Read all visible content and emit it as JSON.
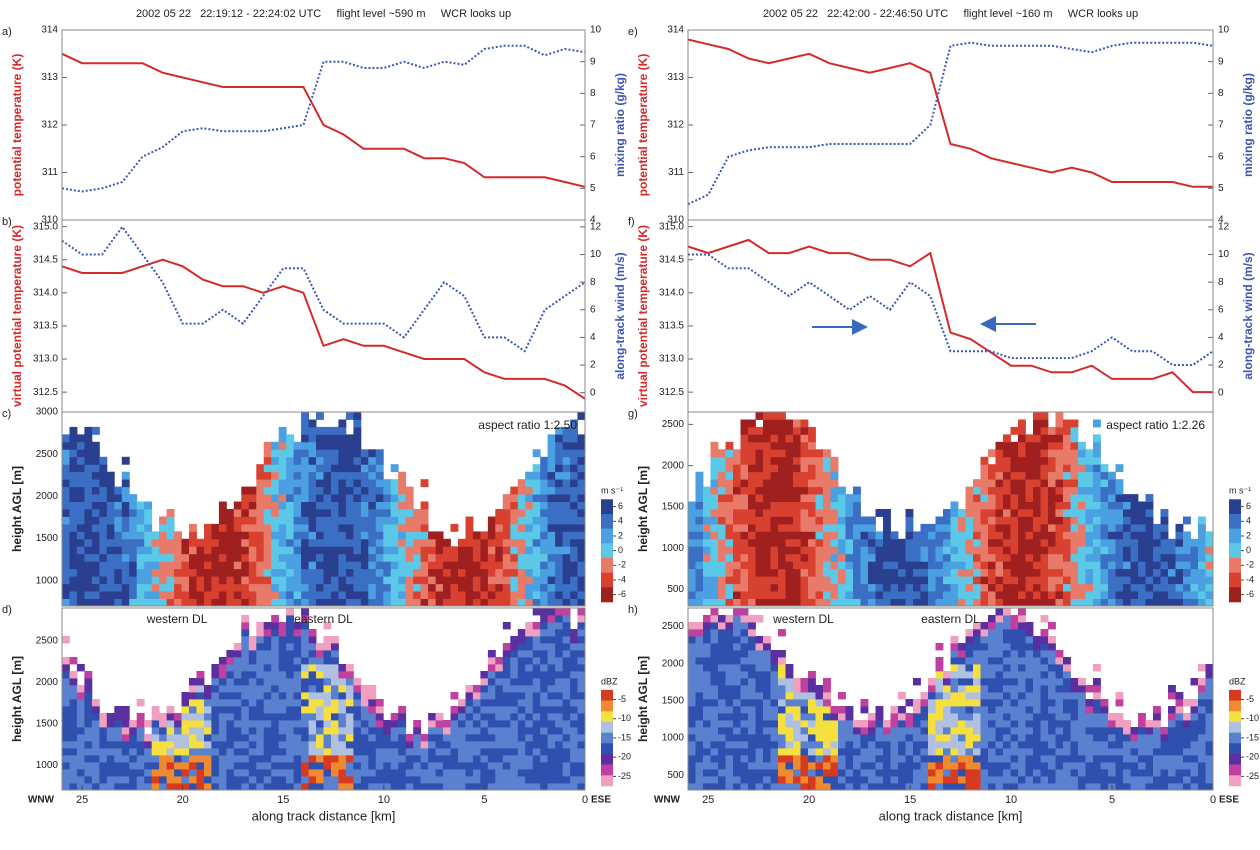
{
  "chart_data": [
    {
      "type": "line",
      "label": "a)",
      "title": "2002 05 22   22:19:12 - 22:24:02 UTC     flight level ~590 m     WCR looks up",
      "ylabel": "potential temperature (K)",
      "y2label": "mixing ratio (g/kg)",
      "x": [
        26,
        25,
        24,
        23,
        22,
        21,
        20,
        19,
        18,
        17,
        16,
        15,
        14,
        13,
        12,
        11,
        10,
        9,
        8,
        7,
        6,
        5,
        4,
        3,
        2,
        1,
        0
      ],
      "xlim": [
        26,
        0
      ],
      "ylim": [
        310,
        314
      ],
      "yticks": [
        310,
        311,
        312,
        313,
        314
      ],
      "y2lim": [
        4,
        10
      ],
      "y2ticks": [
        4,
        5,
        6,
        7,
        8,
        9,
        10
      ],
      "series": [
        {
          "name": "potential temperature",
          "color": "#d42a2a",
          "axis": "y",
          "values": [
            313.5,
            313.3,
            313.3,
            313.3,
            313.3,
            313.1,
            313.0,
            312.9,
            312.8,
            312.8,
            312.8,
            312.8,
            312.8,
            312.0,
            311.8,
            311.5,
            311.5,
            311.5,
            311.3,
            311.3,
            311.2,
            310.9,
            310.9,
            310.9,
            310.9,
            310.8,
            310.7
          ]
        },
        {
          "name": "mixing ratio",
          "color": "#3b55b5",
          "axis": "y2",
          "dashed": true,
          "values": [
            5.0,
            4.9,
            5.0,
            5.2,
            6.0,
            6.3,
            6.8,
            6.9,
            6.8,
            6.8,
            6.8,
            6.9,
            7.0,
            9.0,
            9.0,
            8.8,
            8.8,
            9.0,
            8.8,
            9.0,
            8.9,
            9.4,
            9.5,
            9.5,
            9.2,
            9.4,
            9.3
          ]
        }
      ]
    },
    {
      "type": "line",
      "label": "b)",
      "ylabel": "virtual potential temperature (K)",
      "y2label": "along-track wind (m/s)",
      "x": [
        26,
        25,
        24,
        23,
        22,
        21,
        20,
        19,
        18,
        17,
        16,
        15,
        14,
        13,
        12,
        11,
        10,
        9,
        8,
        7,
        6,
        5,
        4,
        3,
        2,
        1,
        0
      ],
      "xlim": [
        26,
        0
      ],
      "ylim": [
        312.2,
        315.1
      ],
      "yticks": [
        312.5,
        {
          "value": 313,
          "label": "313.0"
        },
        313.5,
        {
          "value": 314,
          "label": "314.0"
        },
        314.5,
        {
          "value": 315,
          "label": "315.0"
        }
      ],
      "y2lim": [
        -1.4,
        12.5
      ],
      "y2ticks": [
        0,
        2,
        4,
        6,
        8,
        10,
        12
      ],
      "series": [
        {
          "name": "virtual potential temperature",
          "color": "#d42a2a",
          "axis": "y",
          "values": [
            314.4,
            314.3,
            314.3,
            314.3,
            314.4,
            314.5,
            314.4,
            314.2,
            314.1,
            314.1,
            314.0,
            314.1,
            314.0,
            313.2,
            313.3,
            313.2,
            313.2,
            313.1,
            313.0,
            313.0,
            313.0,
            312.8,
            312.7,
            312.7,
            312.7,
            312.6,
            312.4
          ]
        },
        {
          "name": "along-track wind",
          "color": "#3b55b5",
          "axis": "y2",
          "dashed": true,
          "values": [
            11,
            10,
            10,
            12,
            10,
            8,
            5,
            5,
            6,
            5,
            7,
            9,
            9,
            6,
            5,
            5,
            5,
            4,
            6,
            8,
            7,
            4,
            4,
            3,
            6,
            7,
            8
          ]
        }
      ]
    },
    {
      "type": "radar",
      "label": "c)",
      "ylabel": "height AGL [m]",
      "xlim": [
        26,
        0
      ],
      "ylim": [
        700,
        3000
      ],
      "yticks": [
        1000,
        1500,
        2000,
        2500,
        3000
      ],
      "annotations": [
        "aspect ratio 1:2.50"
      ],
      "colorbar": {
        "label": "m s⁻¹",
        "ticks": [
          6,
          4,
          2,
          0,
          -2,
          -4,
          -6
        ],
        "colors": [
          "#2a3f8f",
          "#3a6fc4",
          "#4aa0e0",
          "#5bc8e8",
          "#e87a6a",
          "#d84030",
          "#a02020"
        ]
      }
    },
    {
      "type": "radar",
      "label": "d)",
      "ylabel": "height AGL [m]",
      "xlabel": "along track distance [km]",
      "xlim": [
        26,
        0
      ],
      "xticks": [
        25,
        20,
        15,
        10,
        5,
        0
      ],
      "ylim": [
        700,
        2900
      ],
      "yticks": [
        1000,
        1500,
        2000,
        2500
      ],
      "annotations": [
        "western DL",
        "eastern DL"
      ],
      "direction_labels": [
        "WNW",
        "ESE"
      ],
      "colorbar": {
        "label": "dBZ",
        "ticks": [
          -5,
          -10,
          -15,
          -20,
          -25
        ],
        "colors": [
          "#d83a20",
          "#f08a30",
          "#f5e040",
          "#b0c0e0",
          "#5a80d0",
          "#3050b0",
          "#5a30a0",
          "#c040a0",
          "#f0a0c0"
        ]
      }
    },
    {
      "type": "line",
      "label": "e)",
      "title": "2002 05 22   22:42:00 - 22:46:50 UTC     flight level ~160 m     WCR looks up",
      "ylabel": "potential temperature (K)",
      "y2label": "mixing ratio (g/kg)",
      "x": [
        26,
        25,
        24,
        23,
        22,
        21,
        20,
        19,
        18,
        17,
        16,
        15,
        14,
        13,
        12,
        11,
        10,
        9,
        8,
        7,
        6,
        5,
        4,
        3,
        2,
        1,
        0
      ],
      "xlim": [
        26,
        0
      ],
      "ylim": [
        310,
        314
      ],
      "yticks": [
        310,
        311,
        312,
        313,
        314
      ],
      "y2lim": [
        4,
        10
      ],
      "y2ticks": [
        4,
        5,
        6,
        7,
        8,
        9,
        10
      ],
      "series": [
        {
          "name": "potential temperature",
          "color": "#d42a2a",
          "axis": "y",
          "values": [
            313.8,
            313.7,
            313.6,
            313.4,
            313.3,
            313.4,
            313.5,
            313.3,
            313.2,
            313.1,
            313.2,
            313.3,
            313.1,
            311.6,
            311.5,
            311.3,
            311.2,
            311.1,
            311.0,
            311.1,
            311.0,
            310.8,
            310.8,
            310.8,
            310.8,
            310.7,
            310.7
          ]
        },
        {
          "name": "mixing ratio",
          "color": "#3b55b5",
          "axis": "y2",
          "dashed": true,
          "values": [
            4.5,
            4.8,
            6.0,
            6.2,
            6.3,
            6.3,
            6.3,
            6.4,
            6.4,
            6.4,
            6.4,
            6.4,
            7.0,
            9.5,
            9.6,
            9.5,
            9.5,
            9.5,
            9.5,
            9.4,
            9.3,
            9.5,
            9.6,
            9.6,
            9.6,
            9.6,
            9.5
          ]
        }
      ]
    },
    {
      "type": "line",
      "label": "f)",
      "ylabel": "virtual potential temperature (K)",
      "y2label": "along-track wind (m/s)",
      "x": [
        26,
        25,
        24,
        23,
        22,
        21,
        20,
        19,
        18,
        17,
        16,
        15,
        14,
        13,
        12,
        11,
        10,
        9,
        8,
        7,
        6,
        5,
        4,
        3,
        2,
        1,
        0
      ],
      "xlim": [
        26,
        0
      ],
      "ylim": [
        312.2,
        315.1
      ],
      "yticks": [
        312.5,
        {
          "value": 313,
          "label": "313.0"
        },
        313.5,
        {
          "value": 314,
          "label": "314.0"
        },
        314.5,
        {
          "value": 315,
          "label": "315.0"
        }
      ],
      "y2lim": [
        -1.4,
        12.5
      ],
      "y2ticks": [
        0,
        2,
        4,
        6,
        8,
        10,
        12
      ],
      "series": [
        {
          "name": "virtual potential temperature",
          "color": "#d42a2a",
          "axis": "y",
          "values": [
            314.7,
            314.6,
            314.7,
            314.8,
            314.6,
            314.6,
            314.7,
            314.6,
            314.6,
            314.5,
            314.5,
            314.4,
            314.6,
            313.4,
            313.3,
            313.1,
            312.9,
            312.9,
            312.8,
            312.8,
            312.9,
            312.7,
            312.7,
            312.7,
            312.8,
            312.5,
            312.5
          ]
        },
        {
          "name": "along-track wind",
          "color": "#3b55b5",
          "axis": "y2",
          "dashed": true,
          "values": [
            10,
            10,
            9,
            9,
            8,
            7,
            8,
            7,
            6,
            7,
            6,
            8,
            7,
            3,
            3,
            3,
            2.5,
            2.5,
            2.5,
            2.5,
            3,
            4,
            3,
            3,
            2,
            2,
            3
          ]
        }
      ]
    },
    {
      "type": "radar",
      "label": "g)",
      "ylabel": "height AGL [m]",
      "xlim": [
        26,
        0
      ],
      "ylim": [
        300,
        2650
      ],
      "yticks": [
        500,
        1000,
        1500,
        2000,
        2500
      ],
      "annotations": [
        "aspect ratio 1:2.26"
      ],
      "colorbar": {
        "label": "m s⁻¹",
        "ticks": [
          6,
          4,
          2,
          0,
          -2,
          -4,
          -6
        ],
        "colors": [
          "#2a3f8f",
          "#3a6fc4",
          "#4aa0e0",
          "#5bc8e8",
          "#e87a6a",
          "#d84030",
          "#a02020"
        ]
      }
    },
    {
      "type": "radar",
      "label": "h)",
      "ylabel": "height AGL [m]",
      "xlabel": "along track distance [km]",
      "xlim": [
        26,
        0
      ],
      "xticks": [
        25,
        20,
        15,
        10,
        5,
        0
      ],
      "ylim": [
        300,
        2750
      ],
      "yticks": [
        500,
        1000,
        1500,
        2000,
        2500
      ],
      "annotations": [
        "western DL",
        "eastern DL"
      ],
      "direction_labels": [
        "WNW",
        "ESE"
      ],
      "colorbar": {
        "label": "dBZ",
        "ticks": [
          -5,
          -10,
          -15,
          -20,
          -25
        ],
        "colors": [
          "#d83a20",
          "#f08a30",
          "#f5e040",
          "#b0c0e0",
          "#5a80d0",
          "#3050b0",
          "#5a30a0",
          "#c040a0",
          "#f0a0c0"
        ]
      }
    }
  ]
}
